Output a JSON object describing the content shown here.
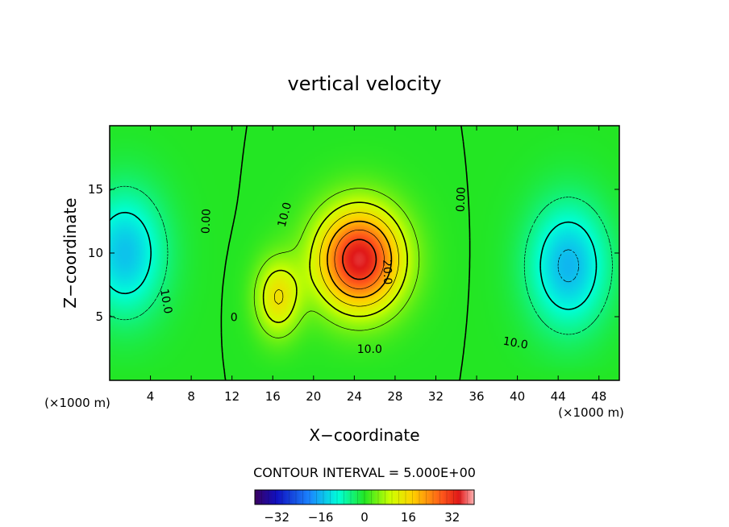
{
  "chart_data": {
    "type": "heatmap",
    "title": "vertical velocity",
    "xlabel": "X−coordinate",
    "ylabel": "Z−coordinate",
    "x_unit_left": "(×1000 m)",
    "x_unit_right": "(×1000 m)",
    "xlim": [
      0,
      50
    ],
    "ylim": [
      0,
      20
    ],
    "x_ticks": [
      4,
      8,
      12,
      16,
      20,
      24,
      28,
      32,
      36,
      40,
      44,
      48
    ],
    "y_ticks": [
      5,
      10,
      15
    ],
    "contour_interval_text": "CONTOUR INTERVAL = 5.000E+00",
    "contour_labels": [
      {
        "text": "0.00",
        "x": 9.5,
        "y": 12.5,
        "rot": -88
      },
      {
        "text": "10.0",
        "x": 17.2,
        "y": 13.0,
        "rot": -75
      },
      {
        "text": "20.0",
        "x": 27.2,
        "y": 8.5,
        "rot": 88
      },
      {
        "text": "10.0",
        "x": 25.5,
        "y": 2.4,
        "rot": 0
      },
      {
        "text": "0.00",
        "x": 34.5,
        "y": 14.2,
        "rot": -88
      },
      {
        "text": "0",
        "x": 12.2,
        "y": 4.9,
        "rot": 0
      },
      {
        "text": "10.0",
        "x": 5.5,
        "y": 6.2,
        "rot": 80
      },
      {
        "text": "10.0",
        "x": 39.8,
        "y": 2.9,
        "rot": 10
      }
    ],
    "colorbar": {
      "min": -40,
      "max": 40,
      "tick_values": [
        -32,
        -16,
        0,
        16,
        32
      ],
      "tick_labels": [
        "−32",
        "−16",
        "0",
        "16",
        "32"
      ]
    },
    "field_features": [
      {
        "kind": "updraft",
        "x": 24.5,
        "z": 9.5,
        "peak": 35
      },
      {
        "kind": "updraft-secondary",
        "x": 16.5,
        "z": 6.5,
        "peak": 15
      },
      {
        "kind": "downdraft",
        "x": 1.5,
        "z": 10.0,
        "peak": -15
      },
      {
        "kind": "downdraft",
        "x": 45.0,
        "z": 9.0,
        "peak": -16
      }
    ]
  }
}
